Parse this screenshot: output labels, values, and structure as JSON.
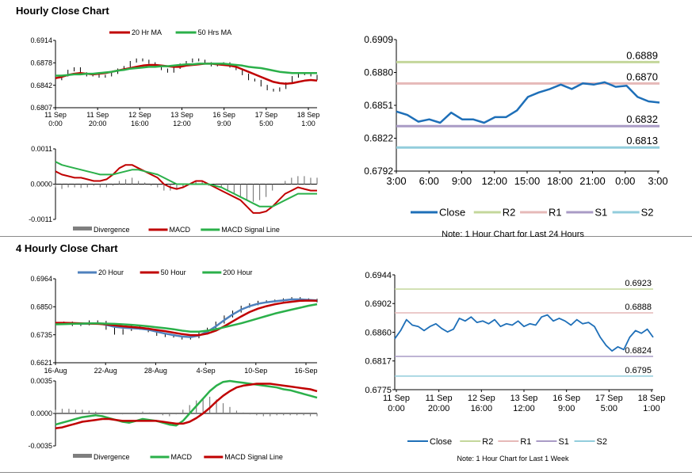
{
  "sections": {
    "hourly_title": "Hourly Close Chart",
    "four_hourly_title": "4 Hourly Close Chart"
  },
  "chart_data": [
    {
      "id": "c1",
      "type": "line",
      "title": "",
      "ylim": [
        0.6807,
        0.6914
      ],
      "yticks": [
        "0.6914",
        "0.6878",
        "0.6842",
        "0.6807"
      ],
      "xticks": [
        [
          "11 Sep",
          "0:00"
        ],
        [
          "11 Sep",
          "20:00"
        ],
        [
          "12 Sep",
          "16:00"
        ],
        [
          "13 Sep",
          "12:00"
        ],
        [
          "16 Sep",
          "9:00"
        ],
        [
          "17 Sep",
          "5:00"
        ],
        [
          "18 Sep",
          "1:00"
        ]
      ],
      "legend": [
        "20 Hr MA",
        "50 Hrs MA"
      ],
      "colors": {
        "price": "#000000",
        "ma20": "#c00000",
        "ma50": "#2bb04a"
      },
      "series": [
        {
          "name": "Price",
          "style": "bars",
          "values": [
            0.6852,
            0.6858,
            0.6866,
            0.687,
            0.6862,
            0.6858,
            0.686,
            0.6856,
            0.6858,
            0.6862,
            0.6868,
            0.6872,
            0.688,
            0.6884,
            0.6882,
            0.6878,
            0.6872,
            0.6868,
            0.6864,
            0.687,
            0.6876,
            0.688,
            0.6884,
            0.6882,
            0.6878,
            0.6874,
            0.6876,
            0.6878,
            0.6872,
            0.6868,
            0.686,
            0.6852,
            0.685,
            0.6842,
            0.6836,
            0.6834,
            0.6838,
            0.6846,
            0.6856,
            0.686,
            0.6862,
            0.6858,
            0.6852
          ]
        },
        {
          "name": "20 Hr MA",
          "values": [
            0.6854,
            0.6856,
            0.6859,
            0.6861,
            0.6862,
            0.6861,
            0.686,
            0.6861,
            0.6862,
            0.6864,
            0.6866,
            0.6868,
            0.687,
            0.6872,
            0.6874,
            0.6875,
            0.6875,
            0.6874,
            0.6873,
            0.6872,
            0.6872,
            0.6874,
            0.6875,
            0.6876,
            0.6877,
            0.6877,
            0.6876,
            0.6875,
            0.6874,
            0.6872,
            0.6868,
            0.6864,
            0.686,
            0.6856,
            0.6852,
            0.6848,
            0.6846,
            0.6845,
            0.6846,
            0.6848,
            0.685,
            0.6851,
            0.685
          ]
        },
        {
          "name": "50 Hrs MA",
          "values": [
            0.6858,
            0.6858,
            0.6859,
            0.686,
            0.686,
            0.6861,
            0.6861,
            0.6862,
            0.6863,
            0.6864,
            0.6866,
            0.6867,
            0.6869,
            0.687,
            0.6871,
            0.6872,
            0.6872,
            0.6873,
            0.6873,
            0.6874,
            0.6875,
            0.6876,
            0.6876,
            0.6877,
            0.6877,
            0.6877,
            0.6877,
            0.6877,
            0.6876,
            0.6875,
            0.6874,
            0.6872,
            0.6871,
            0.687,
            0.6868,
            0.6866,
            0.6864,
            0.6863,
            0.6862,
            0.6862,
            0.6862,
            0.6862,
            0.6862
          ]
        }
      ]
    },
    {
      "id": "c2",
      "type": "line",
      "title": "",
      "ylim": [
        -0.0011,
        0.0011
      ],
      "yticks": [
        "0.0011",
        "0.0000",
        "-0.0011"
      ],
      "legend": [
        "Divergence",
        "MACD",
        "MACD Signal Line"
      ],
      "colors": {
        "div": "#7f7f7f",
        "macd": "#c00000",
        "signal": "#2bb04a"
      },
      "series": [
        {
          "name": "Divergence",
          "style": "histogram",
          "values": [
            -0.0001,
            -0.00015,
            -0.0001,
            -0.0001,
            -0.00012,
            -0.0001,
            -5e-05,
            -0.0001,
            -0.0001,
            -5e-05,
            0.0001,
            0.00015,
            0.0002,
            0.0001,
            5e-05,
            -5e-05,
            -0.0001,
            -0.0002,
            -0.0002,
            -0.00015,
            -0.0001,
            0.0,
            0.0001,
            0.0001,
            -5e-05,
            -0.0001,
            -0.0001,
            -0.0002,
            -0.0003,
            -0.0004,
            -0.0005,
            -0.00055,
            -0.0005,
            -0.0004,
            -0.0002,
            0.0,
            0.0001,
            0.0002,
            0.00025,
            0.00025,
            0.0002,
            0.0002
          ]
        },
        {
          "name": "MACD",
          "values": [
            0.0004,
            0.0003,
            0.00025,
            0.0002,
            0.0002,
            0.00015,
            0.0001,
            0.0001,
            0.00015,
            0.0003,
            0.0005,
            0.0006,
            0.0006,
            0.0005,
            0.0004,
            0.0003,
            0.0002,
            0.0,
            -0.0001,
            -0.00015,
            -0.0001,
            0.0,
            0.0001,
            0.0001,
            0.0,
            -0.0001,
            -0.0002,
            -0.0003,
            -0.0004,
            -0.0005,
            -0.0007,
            -0.0009,
            -0.0009,
            -0.00085,
            -0.0007,
            -0.0005,
            -0.0003,
            -0.0002,
            -0.0001,
            -0.00015,
            -0.0002,
            -0.0002
          ]
        },
        {
          "name": "MACD Signal Line",
          "values": [
            0.0007,
            0.0006,
            0.00055,
            0.0005,
            0.00045,
            0.0004,
            0.00035,
            0.0003,
            0.0003,
            0.0003,
            0.00035,
            0.0004,
            0.00045,
            0.00045,
            0.0004,
            0.00035,
            0.0003,
            0.0002,
            0.0001,
            0.0,
            0.0,
            0.0,
            0.0,
            0.0,
            0.0,
            -5e-05,
            -0.0001,
            -0.0002,
            -0.0003,
            -0.0004,
            -0.0005,
            -0.0006,
            -0.0007,
            -0.0007,
            -0.0007,
            -0.0006,
            -0.0005,
            -0.0004,
            -0.0003,
            -0.0003,
            -0.0003,
            -0.0003
          ]
        }
      ]
    },
    {
      "id": "c3",
      "type": "line",
      "title": "",
      "ylim": [
        0.6792,
        0.6909
      ],
      "yticks": [
        "0.6909",
        "0.6880",
        "0.6851",
        "0.6822",
        "0.6792"
      ],
      "xticks": [
        "3:00",
        "6:00",
        "9:00",
        "12:00",
        "15:00",
        "18:00",
        "21:00",
        "0:00",
        "3:00"
      ],
      "legend": [
        "Close",
        "R2",
        "R1",
        "S1",
        "S2"
      ],
      "levels": {
        "R2": 0.6889,
        "R1": 0.687,
        "S1": 0.6832,
        "S2": 0.6813
      },
      "level_labels": {
        "R2": "0.6889",
        "R1": "0.6870",
        "S1": "0.6832",
        "S2": "0.6813"
      },
      "colors": {
        "close": "#1e6fb8",
        "R2": "#c4d79b",
        "R1": "#e6b9b8",
        "S1": "#a99bc6",
        "S2": "#92cddc"
      },
      "series": [
        {
          "name": "Close",
          "values": [
            0.6845,
            0.6842,
            0.6836,
            0.6838,
            0.6835,
            0.6844,
            0.6838,
            0.6838,
            0.6835,
            0.684,
            0.684,
            0.6846,
            0.6858,
            0.6862,
            0.6865,
            0.6869,
            0.6865,
            0.687,
            0.6869,
            0.6871,
            0.6867,
            0.6868,
            0.6858,
            0.6854,
            0.6853
          ]
        }
      ],
      "note": "Note: 1 Hour Chart for Last 24 Hours"
    },
    {
      "id": "c4",
      "type": "line",
      "title": "",
      "ylim": [
        0.6621,
        0.6964
      ],
      "yticks": [
        "0.6964",
        "0.6850",
        "0.6735",
        "0.6621"
      ],
      "xticks": [
        "16-Aug",
        "22-Aug",
        "28-Aug",
        "4-Sep",
        "10-Sep",
        "16-Sep"
      ],
      "legend": [
        "20 Hour",
        "50 Hour",
        "200 Hour"
      ],
      "colors": {
        "price": "#000000",
        "h20": "#4f81bd",
        "h50": "#c00000",
        "h200": "#2bb04a"
      },
      "series": [
        {
          "name": "Price",
          "style": "bars",
          "values": [
            0.678,
            0.6785,
            0.6775,
            0.6778,
            0.679,
            0.6788,
            0.676,
            0.674,
            0.6755,
            0.677,
            0.676,
            0.675,
            0.6735,
            0.673,
            0.6728,
            0.672,
            0.6725,
            0.674,
            0.676,
            0.6785,
            0.681,
            0.683,
            0.685,
            0.686,
            0.687,
            0.6872,
            0.6875,
            0.688,
            0.6885,
            0.688,
            0.6878,
            0.6872
          ]
        },
        {
          "name": "20 Hour",
          "values": [
            0.6782,
            0.6782,
            0.6781,
            0.678,
            0.6781,
            0.6782,
            0.6776,
            0.6768,
            0.6764,
            0.6762,
            0.676,
            0.6756,
            0.6748,
            0.674,
            0.6734,
            0.6728,
            0.6726,
            0.6732,
            0.6748,
            0.677,
            0.6795,
            0.6818,
            0.6838,
            0.6852,
            0.6862,
            0.6868,
            0.6872,
            0.6876,
            0.688,
            0.688,
            0.6878,
            0.6876
          ]
        },
        {
          "name": "50 Hour",
          "values": [
            0.6784,
            0.6784,
            0.6783,
            0.6782,
            0.6781,
            0.678,
            0.6778,
            0.6774,
            0.677,
            0.6767,
            0.6764,
            0.676,
            0.6755,
            0.675,
            0.6744,
            0.6738,
            0.6734,
            0.6734,
            0.674,
            0.6752,
            0.677,
            0.679,
            0.681,
            0.6828,
            0.6842,
            0.6852,
            0.686,
            0.6866,
            0.687,
            0.6874,
            0.6875,
            0.6874
          ]
        },
        {
          "name": "200 Hour",
          "values": [
            0.6778,
            0.6779,
            0.678,
            0.6781,
            0.6782,
            0.6782,
            0.6781,
            0.678,
            0.6778,
            0.6776,
            0.6773,
            0.677,
            0.6766,
            0.6762,
            0.6758,
            0.6752,
            0.6748,
            0.6748,
            0.6752,
            0.6758,
            0.6766,
            0.6774,
            0.6782,
            0.6792,
            0.6802,
            0.6812,
            0.6822,
            0.683,
            0.6838,
            0.6846,
            0.6854,
            0.686
          ]
        }
      ]
    },
    {
      "id": "c5",
      "type": "line",
      "title": "",
      "ylim": [
        -0.0035,
        0.0035
      ],
      "yticks": [
        "0.0035",
        "0.0000",
        "-0.0035"
      ],
      "legend": [
        "Divergence",
        "MACD",
        "MACD Signal Line"
      ],
      "colors": {
        "div": "#7f7f7f",
        "macd": "#2bb04a",
        "signal": "#c00000"
      },
      "series": [
        {
          "name": "Divergence",
          "style": "histogram",
          "values": [
            0.0004,
            0.0005,
            0.0005,
            0.0004,
            0.0004,
            0.0003,
            0.0002,
            0.0001,
            0.0001,
            0.0,
            -0.0001,
            0.0,
            0.0001,
            0.0002,
            0.0001,
            0.0,
            -0.0002,
            -0.0003,
            -0.0001,
            0.0004,
            0.0009,
            0.0014,
            0.0017,
            0.0018,
            0.0015,
            0.0011,
            0.0007,
            0.0003,
            0.0001,
            -0.0001,
            -0.0002,
            -0.0003,
            -0.0003,
            -0.0002,
            -0.0002,
            -0.0002,
            -0.0002,
            -0.0002,
            -0.0003,
            -0.0003
          ]
        },
        {
          "name": "MACD",
          "values": [
            -0.0012,
            -0.001,
            -0.0008,
            -0.0006,
            -0.0004,
            -0.0003,
            -0.0002,
            -0.0003,
            -0.0005,
            -0.0007,
            -0.0009,
            -0.001,
            -0.0008,
            -0.0006,
            -0.0007,
            -0.0008,
            -0.001,
            -0.0012,
            -0.0013,
            -0.0008,
            0.0,
            0.0008,
            0.0016,
            0.0024,
            0.003,
            0.0034,
            0.0035,
            0.0034,
            0.0033,
            0.0032,
            0.0031,
            0.003,
            0.0029,
            0.0028,
            0.0026,
            0.0025,
            0.0023,
            0.0021,
            0.0019,
            0.0017
          ]
        },
        {
          "name": "MACD Signal Line",
          "values": [
            -0.0016,
            -0.0015,
            -0.0013,
            -0.0011,
            -0.0009,
            -0.0008,
            -0.0007,
            -0.0006,
            -0.0006,
            -0.0007,
            -0.0008,
            -0.0008,
            -0.0008,
            -0.0008,
            -0.0008,
            -0.0008,
            -0.0009,
            -0.001,
            -0.0011,
            -0.0011,
            -0.0009,
            -0.0005,
            0.0,
            0.0006,
            0.0013,
            0.0019,
            0.0024,
            0.0028,
            0.003,
            0.0031,
            0.0032,
            0.0032,
            0.0032,
            0.0031,
            0.003,
            0.0029,
            0.0028,
            0.0027,
            0.0026,
            0.0024
          ]
        }
      ]
    },
    {
      "id": "c6",
      "type": "line",
      "title": "",
      "ylim": [
        0.6775,
        0.6944
      ],
      "yticks": [
        "0.6944",
        "0.6902",
        "0.6860",
        "0.6817",
        "0.6775"
      ],
      "xticks": [
        [
          "11 Sep",
          "0:00"
        ],
        [
          "11 Sep",
          "20:00"
        ],
        [
          "12 Sep",
          "16:00"
        ],
        [
          "13 Sep",
          "12:00"
        ],
        [
          "16 Sep",
          "9:00"
        ],
        [
          "17 Sep",
          "5:00"
        ],
        [
          "18 Sep",
          "1:00"
        ]
      ],
      "legend": [
        "Close",
        "R2",
        "R1",
        "S1",
        "S2"
      ],
      "levels": {
        "R2": 0.6923,
        "R1": 0.6888,
        "S1": 0.6824,
        "S2": 0.6795
      },
      "level_labels": {
        "R2": "0.6923",
        "R1": "0.6888",
        "S1": "0.6824",
        "S2": "0.6795"
      },
      "colors": {
        "close": "#1e6fb8",
        "R2": "#c4d79b",
        "R1": "#e6b9b8",
        "S1": "#a99bc6",
        "S2": "#92cddc"
      },
      "series": [
        {
          "name": "Close",
          "values": [
            0.685,
            0.6862,
            0.6878,
            0.687,
            0.6868,
            0.6862,
            0.6868,
            0.6872,
            0.6865,
            0.686,
            0.6864,
            0.688,
            0.6876,
            0.6882,
            0.6874,
            0.6876,
            0.6872,
            0.6878,
            0.6868,
            0.6872,
            0.687,
            0.6876,
            0.6868,
            0.6872,
            0.687,
            0.6882,
            0.6885,
            0.6876,
            0.688,
            0.6876,
            0.687,
            0.6878,
            0.6872,
            0.6874,
            0.6868,
            0.6852,
            0.684,
            0.6832,
            0.6838,
            0.6834,
            0.6852,
            0.6862,
            0.6858,
            0.6864,
            0.6852
          ]
        }
      ],
      "note": "Note: 1 Hour Chart for Last 1 Week"
    }
  ]
}
